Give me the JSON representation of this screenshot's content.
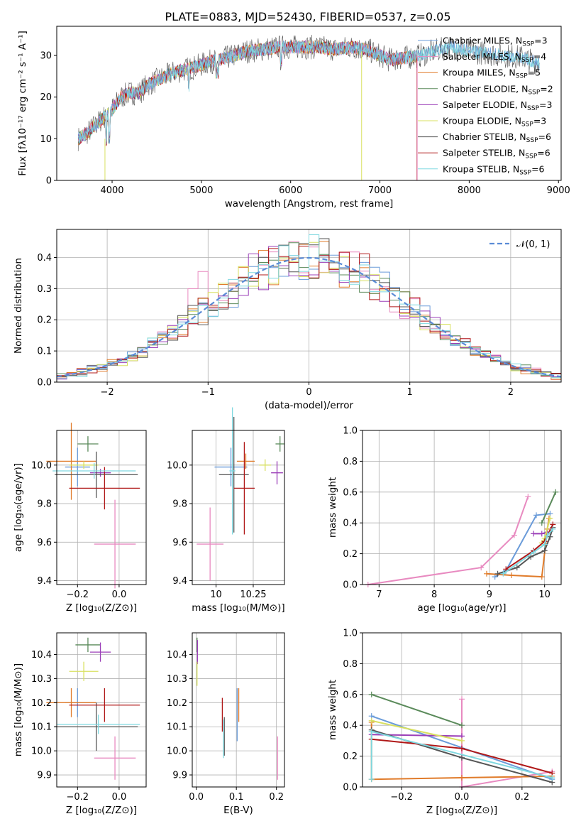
{
  "figure_title": "PLATE=0883, MJD=52430, FIBERID=0537, z=0.05",
  "colors": [
    "#6a9bd9",
    "#e88ac0",
    "#e07b2a",
    "#5a8a5a",
    "#9b3fb8",
    "#d8e060",
    "#555555",
    "#b01818",
    "#7fd8e0"
  ],
  "chart_data": [
    {
      "id": "spectrum",
      "type": "line",
      "xlabel": "wavelength [Angstrom, rest frame]",
      "ylabel": "Flux [fλ10⁻¹⁷ erg cm⁻² s⁻¹ A⁻¹]",
      "xlim": [
        3380,
        9030
      ],
      "ylim": [
        0,
        37
      ],
      "xticks": [
        4000,
        5000,
        6000,
        7000,
        8000,
        9000
      ],
      "yticks": [
        0,
        10,
        20,
        30
      ],
      "legend_position": "top-right",
      "legend": [
        "Chabrier MILES, N_SSP=3",
        "Salpeter MILES, N_SSP=4",
        "Kroupa MILES, N_SSP=5",
        "Chabrier ELODIE, N_SSP=2",
        "Salpeter ELODIE, N_SSP=3",
        "Kroupa ELODIE, N_SSP=3",
        "Chabrier STELIB, N_SSP=6",
        "Salpeter STELIB, N_SSP=6",
        "Kroupa STELIB, N_SSP=6"
      ],
      "continuum": {
        "x": [
          3620,
          3700,
          3800,
          3900,
          4000,
          4100,
          4200,
          4300,
          4400,
          4500,
          4700,
          4900,
          5100,
          5300,
          5500,
          5700,
          5900,
          6100,
          6300,
          6500,
          6700,
          6900,
          7100,
          7300,
          7450,
          7600,
          7800,
          8000,
          8200,
          8400,
          8600,
          8790
        ],
        "y": [
          10,
          11,
          13,
          15,
          17,
          20,
          21,
          21,
          23,
          24,
          26,
          27,
          28.5,
          29.5,
          31,
          31.5,
          32,
          32,
          32,
          31.5,
          32,
          31,
          29,
          29.5,
          30,
          31,
          32,
          31,
          30.5,
          30,
          29.5,
          28
        ]
      }
    },
    {
      "id": "residuals",
      "type": "bar",
      "xlabel": "(data-model)/error",
      "ylabel": "Normed distribution",
      "xlim": [
        -2.5,
        2.5
      ],
      "ylim": [
        0,
        0.49
      ],
      "xticks": [
        -2,
        -1,
        0,
        1,
        2
      ],
      "yticks": [
        0.0,
        0.1,
        0.2,
        0.3,
        0.4
      ],
      "grid": true,
      "legend_position": "top-right",
      "legend": [
        "𝒩(0, 1)"
      ]
    },
    {
      "id": "age-vs-Z",
      "type": "scatter",
      "xlabel": "Z [log₁₀(Z/Z⊙)]",
      "ylabel": "age  [log₁₀(age/yr)]",
      "xlim": [
        -0.3,
        0.13
      ],
      "ylim": [
        9.38,
        10.18
      ],
      "xticks": [
        -0.2,
        0.0
      ],
      "yticks": [
        9.4,
        9.6,
        9.8,
        10.0
      ],
      "grid": true,
      "points": [
        {
          "x": -0.2,
          "y": 9.99,
          "xerr": 0.06,
          "yerr": 0.1
        },
        {
          "x": -0.02,
          "y": 9.59,
          "xerr": 0.1,
          "yerr": 0.23
        },
        {
          "x": -0.23,
          "y": 10.02,
          "xerr": 0.12,
          "yerr": 0.2
        },
        {
          "x": -0.15,
          "y": 10.11,
          "xerr": 0.05,
          "yerr": 0.04
        },
        {
          "x": -0.09,
          "y": 9.96,
          "xerr": 0.05,
          "yerr": 0.02
        },
        {
          "x": -0.17,
          "y": 10.0,
          "xerr": 0.07,
          "yerr": 0.02
        },
        {
          "x": -0.11,
          "y": 9.95,
          "xerr": 0.2,
          "yerr": 0.12
        },
        {
          "x": -0.07,
          "y": 9.88,
          "xerr": 0.17,
          "yerr": 0.11
        },
        {
          "x": -0.12,
          "y": 9.97,
          "xerr": 0.2,
          "yerr": 0.04
        }
      ]
    },
    {
      "id": "age-vs-mass",
      "type": "scatter",
      "xlabel": "mass [log₁₀(M/M⊙)]",
      "ylabel": "",
      "xlim": [
        9.84,
        10.46
      ],
      "ylim": [
        9.38,
        10.18
      ],
      "xticks": [
        10.0,
        10.25
      ],
      "yticks": [
        9.4,
        9.6,
        9.8,
        10.0
      ],
      "grid": true,
      "points": [
        {
          "x": 10.1,
          "y": 9.99,
          "xerr": 0.11,
          "yerr": 0.1
        },
        {
          "x": 9.96,
          "y": 9.59,
          "xerr": 0.09,
          "yerr": 0.19
        },
        {
          "x": 10.2,
          "y": 10.02,
          "xerr": 0.06,
          "yerr": 0.04
        },
        {
          "x": 10.43,
          "y": 10.11,
          "xerr": 0.03,
          "yerr": 0.04
        },
        {
          "x": 10.41,
          "y": 9.96,
          "xerr": 0.04,
          "yerr": 0.06
        },
        {
          "x": 10.33,
          "y": 10.0,
          "xerr": 0.04,
          "yerr": 0.03
        },
        {
          "x": 10.12,
          "y": 9.95,
          "xerr": 0.1,
          "yerr": 0.3
        },
        {
          "x": 10.19,
          "y": 9.88,
          "xerr": 0.07,
          "yerr": 0.24
        },
        {
          "x": 10.11,
          "y": 9.97,
          "xerr": 0.02,
          "yerr": 0.33
        }
      ]
    },
    {
      "id": "mass-weight-vs-age",
      "type": "line",
      "xlabel": "age  [log₁₀(age/yr)]",
      "ylabel": "mass weight",
      "xlim": [
        6.7,
        10.3
      ],
      "ylim": [
        0.0,
        1.0
      ],
      "xticks": [
        7,
        8,
        9,
        10
      ],
      "yticks": [
        0.0,
        0.2,
        0.4,
        0.6,
        0.8,
        1.0
      ],
      "grid": true,
      "series": [
        {
          "x": [
            9.1,
            9.3,
            9.85,
            10.1
          ],
          "y": [
            0.05,
            0.09,
            0.45,
            0.46
          ]
        },
        {
          "x": [
            6.8,
            8.85,
            9.45,
            9.7
          ],
          "y": [
            0.0,
            0.11,
            0.32,
            0.57
          ]
        },
        {
          "x": [
            8.95,
            9.4,
            9.95,
            10.05,
            10.08
          ],
          "y": [
            0.07,
            0.06,
            0.05,
            0.36,
            0.43
          ]
        },
        {
          "x": [
            9.95,
            10.2
          ],
          "y": [
            0.4,
            0.6
          ]
        },
        {
          "x": [
            9.8,
            9.95,
            10.05
          ],
          "y": [
            0.33,
            0.33,
            0.34
          ]
        },
        {
          "x": [
            9.95,
            10.0,
            10.1
          ],
          "y": [
            0.27,
            0.3,
            0.43
          ]
        },
        {
          "x": [
            9.15,
            9.5,
            9.75,
            10.0,
            10.1,
            10.15
          ],
          "y": [
            0.07,
            0.11,
            0.18,
            0.22,
            0.31,
            0.37
          ]
        },
        {
          "x": [
            9.3,
            9.8,
            10.0,
            10.15
          ],
          "y": [
            0.1,
            0.22,
            0.28,
            0.39
          ]
        },
        {
          "x": [
            9.25,
            9.8,
            10.0,
            10.05,
            10.15
          ],
          "y": [
            0.07,
            0.21,
            0.26,
            0.32,
            0.36
          ]
        }
      ]
    },
    {
      "id": "mass-vs-Z",
      "type": "scatter",
      "xlabel": "Z [log₁₀(Z/Z⊙)]",
      "ylabel": "mass [log₁₀(M/M⊙)]",
      "xlim": [
        -0.3,
        0.13
      ],
      "ylim": [
        9.85,
        10.49
      ],
      "xticks": [
        -0.2,
        0.0
      ],
      "yticks": [
        9.9,
        10.0,
        10.1,
        10.2,
        10.3,
        10.4
      ],
      "grid": true,
      "points": [
        {
          "x": -0.2,
          "y": 10.2,
          "xerr": 0.06,
          "yerr": 0.06
        },
        {
          "x": -0.02,
          "y": 9.97,
          "xerr": 0.1,
          "yerr": 0.09
        },
        {
          "x": -0.23,
          "y": 10.2,
          "xerr": 0.12,
          "yerr": 0.06
        },
        {
          "x": -0.15,
          "y": 10.44,
          "xerr": 0.06,
          "yerr": 0.03
        },
        {
          "x": -0.09,
          "y": 10.41,
          "xerr": 0.05,
          "yerr": 0.04
        },
        {
          "x": -0.17,
          "y": 10.33,
          "xerr": 0.07,
          "yerr": 0.04
        },
        {
          "x": -0.11,
          "y": 10.1,
          "xerr": 0.2,
          "yerr": 0.1
        },
        {
          "x": -0.07,
          "y": 10.19,
          "xerr": 0.17,
          "yerr": 0.07
        },
        {
          "x": -0.1,
          "y": 10.11,
          "xerr": 0.2,
          "yerr": 0.04
        }
      ]
    },
    {
      "id": "mass-vs-EBV",
      "type": "scatter",
      "xlabel": "E(B-V)",
      "ylabel": "",
      "xlim": [
        -0.01,
        0.22
      ],
      "ylim": [
        9.85,
        10.49
      ],
      "xticks": [
        0.0,
        0.1,
        0.2
      ],
      "yticks": [
        9.9,
        10.0,
        10.1,
        10.2,
        10.3,
        10.4
      ],
      "grid": true,
      "points": [
        {
          "x": 0.102,
          "y": 10.15,
          "xerr": 0.0,
          "yerr": 0.11
        },
        {
          "x": 0.203,
          "y": 9.97,
          "xerr": 0.0,
          "yerr": 0.09
        },
        {
          "x": 0.106,
          "y": 10.19,
          "xerr": 0.0,
          "yerr": 0.07
        },
        {
          "x": 0.002,
          "y": 10.44,
          "xerr": 0.0,
          "yerr": 0.03
        },
        {
          "x": 0.003,
          "y": 10.41,
          "xerr": 0.0,
          "yerr": 0.05
        },
        {
          "x": 0.002,
          "y": 10.32,
          "xerr": 0.0,
          "yerr": 0.05
        },
        {
          "x": 0.07,
          "y": 10.06,
          "xerr": 0.0,
          "yerr": 0.08
        },
        {
          "x": 0.065,
          "y": 10.15,
          "xerr": 0.0,
          "yerr": 0.07
        },
        {
          "x": 0.068,
          "y": 10.05,
          "xerr": 0.0,
          "yerr": 0.08
        }
      ]
    },
    {
      "id": "mass-weight-vs-Z",
      "type": "line",
      "xlabel": "Z [log₁₀(Z/Z⊙)]",
      "ylabel": "mass weight",
      "xlim": [
        -0.33,
        0.33
      ],
      "ylim": [
        0.0,
        1.0
      ],
      "xticks": [
        -0.2,
        0.0,
        0.2
      ],
      "yticks": [
        0.0,
        0.2,
        0.4,
        0.6,
        0.8,
        1.0
      ],
      "grid": true,
      "series": [
        {
          "x": [
            -0.3,
            0.3
          ],
          "y": [
            0.46,
            0.05
          ]
        },
        {
          "x": [
            0.0,
            0.0,
            0.3
          ],
          "y": [
            0.57,
            0.0,
            0.1
          ]
        },
        {
          "x": [
            -0.3,
            -0.3,
            0.0,
            0.3
          ],
          "y": [
            0.42,
            0.05,
            0.06,
            0.07
          ]
        },
        {
          "x": [
            -0.3,
            0.0
          ],
          "y": [
            0.6,
            0.4
          ]
        },
        {
          "x": [
            -0.3,
            0.0
          ],
          "y": [
            0.34,
            0.33
          ]
        },
        {
          "x": [
            -0.3,
            0.0
          ],
          "y": [
            0.43,
            0.3
          ]
        },
        {
          "x": [
            -0.3,
            0.0,
            0.3
          ],
          "y": [
            0.37,
            0.19,
            0.03
          ]
        },
        {
          "x": [
            -0.3,
            0.0,
            0.3
          ],
          "y": [
            0.31,
            0.25,
            0.09
          ]
        },
        {
          "x": [
            -0.3,
            -0.3,
            0.3
          ],
          "y": [
            0.05,
            0.36,
            0.06
          ]
        }
      ]
    }
  ]
}
